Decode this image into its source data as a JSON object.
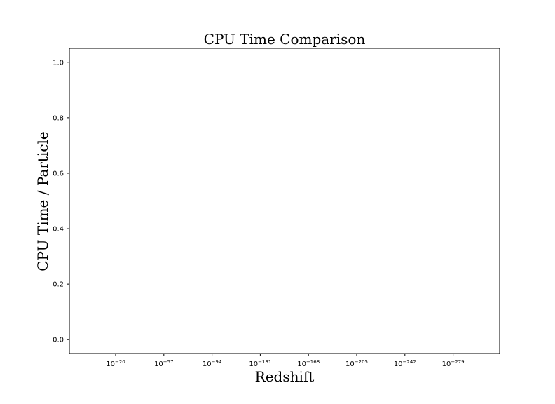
{
  "chart_data": {
    "type": "line",
    "title": "CPU Time Comparison",
    "xlabel": "Redshift",
    "ylabel": "CPU Time / Particle",
    "x_scale": "log",
    "x_ticks": [
      {
        "base": "10",
        "exp": "−20"
      },
      {
        "base": "10",
        "exp": "−57"
      },
      {
        "base": "10",
        "exp": "−94"
      },
      {
        "base": "10",
        "exp": "−131"
      },
      {
        "base": "10",
        "exp": "−168"
      },
      {
        "base": "10",
        "exp": "−205"
      },
      {
        "base": "10",
        "exp": "−242"
      },
      {
        "base": "10",
        "exp": "−279"
      }
    ],
    "y_ticks": [
      "0.0",
      "0.2",
      "0.4",
      "0.6",
      "0.8",
      "1.0"
    ],
    "ylim": [
      -0.05,
      1.05
    ],
    "series": [],
    "grid": false
  }
}
